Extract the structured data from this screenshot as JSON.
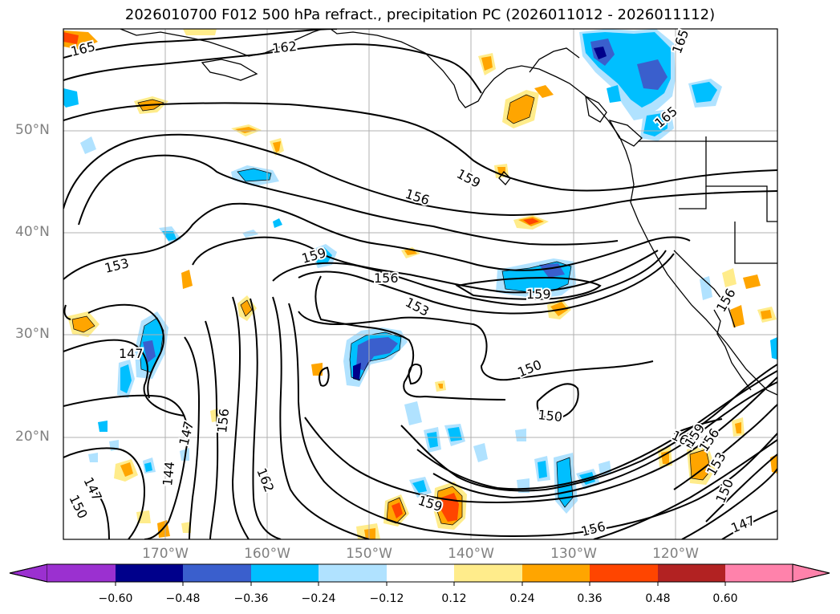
{
  "title": "2026010700 F012 500 hPa refract., precipitation PC (2026011012 - 2026011112)",
  "lat_labels": [
    "50°N",
    "40°N",
    "30°N",
    "20°N"
  ],
  "lon_labels": [
    "170°W",
    "160°W",
    "150°W",
    "140°W",
    "130°W",
    "120°W"
  ],
  "contour_labels": [
    "165",
    "162",
    "165",
    "165",
    "159",
    "156",
    "153",
    "159",
    "156",
    "153",
    "159",
    "150",
    "147",
    "147",
    "156",
    "144",
    "162",
    "147",
    "150",
    "159",
    "156",
    "150",
    "162",
    "159",
    "156",
    "153",
    "150",
    "147",
    "156"
  ],
  "colorbar": {
    "ticks": [
      "−0.60",
      "−0.48",
      "−0.36",
      "−0.24",
      "−0.12",
      "0.12",
      "0.24",
      "0.36",
      "0.48",
      "0.60"
    ],
    "colors": [
      "#9b30d0",
      "#00008b",
      "#3a5fcd",
      "#00bfff",
      "#b0e2ff",
      "#ffffff",
      "#ffec8b",
      "#ffa500",
      "#ff4500",
      "#b22222",
      "#ff82ab"
    ]
  }
}
